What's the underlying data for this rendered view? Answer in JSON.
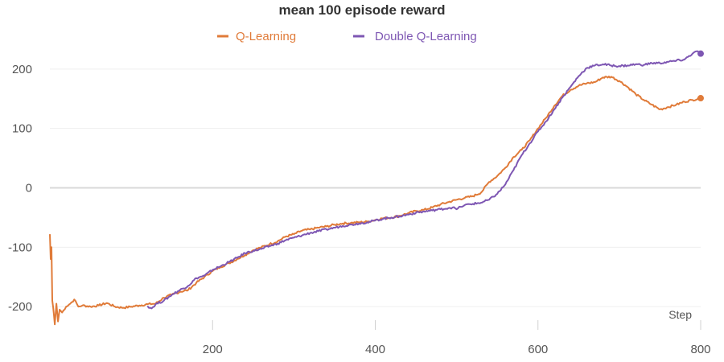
{
  "chart_data": {
    "type": "line",
    "title": "mean 100 episode reward",
    "xlabel": "Step",
    "ylabel": "",
    "xlim": [
      0,
      800
    ],
    "ylim": [
      -235,
      235
    ],
    "xticks": [
      200,
      400,
      600,
      800
    ],
    "yticks": [
      -200,
      -100,
      0,
      100,
      200
    ],
    "grid": true,
    "legend_position": "top",
    "series": [
      {
        "name": "Q-Learning",
        "color": "#e07b39",
        "points": [
          [
            0,
            -78
          ],
          [
            1,
            -120
          ],
          [
            2,
            -100
          ],
          [
            3,
            -190
          ],
          [
            4,
            -200
          ],
          [
            5,
            -215
          ],
          [
            6,
            -230
          ],
          [
            8,
            -195
          ],
          [
            10,
            -225
          ],
          [
            12,
            -205
          ],
          [
            15,
            -210
          ],
          [
            20,
            -200
          ],
          [
            25,
            -195
          ],
          [
            30,
            -188
          ],
          [
            35,
            -200
          ],
          [
            40,
            -198
          ],
          [
            50,
            -200
          ],
          [
            60,
            -198
          ],
          [
            70,
            -194
          ],
          [
            80,
            -200
          ],
          [
            90,
            -202
          ],
          [
            100,
            -200
          ],
          [
            110,
            -198
          ],
          [
            120,
            -196
          ],
          [
            130,
            -195
          ],
          [
            140,
            -185
          ],
          [
            150,
            -180
          ],
          [
            160,
            -175
          ],
          [
            170,
            -172
          ],
          [
            180,
            -160
          ],
          [
            190,
            -150
          ],
          [
            200,
            -140
          ],
          [
            210,
            -133
          ],
          [
            220,
            -127
          ],
          [
            230,
            -120
          ],
          [
            240,
            -113
          ],
          [
            250,
            -105
          ],
          [
            260,
            -100
          ],
          [
            270,
            -95
          ],
          [
            280,
            -90
          ],
          [
            290,
            -82
          ],
          [
            300,
            -78
          ],
          [
            310,
            -72
          ],
          [
            320,
            -70
          ],
          [
            330,
            -67
          ],
          [
            340,
            -65
          ],
          [
            350,
            -62
          ],
          [
            360,
            -60
          ],
          [
            370,
            -59
          ],
          [
            380,
            -58
          ],
          [
            390,
            -57
          ],
          [
            400,
            -54
          ],
          [
            410,
            -51
          ],
          [
            420,
            -50
          ],
          [
            430,
            -47
          ],
          [
            440,
            -43
          ],
          [
            450,
            -39
          ],
          [
            460,
            -37
          ],
          [
            470,
            -33
          ],
          [
            480,
            -28
          ],
          [
            490,
            -24
          ],
          [
            500,
            -20
          ],
          [
            510,
            -17
          ],
          [
            520,
            -14
          ],
          [
            530,
            -8
          ],
          [
            540,
            10
          ],
          [
            550,
            20
          ],
          [
            560,
            34
          ],
          [
            570,
            52
          ],
          [
            580,
            64
          ],
          [
            590,
            80
          ],
          [
            600,
            100
          ],
          [
            610,
            118
          ],
          [
            620,
            138
          ],
          [
            630,
            155
          ],
          [
            640,
            165
          ],
          [
            650,
            172
          ],
          [
            660,
            176
          ],
          [
            670,
            178
          ],
          [
            680,
            186
          ],
          [
            690,
            187
          ],
          [
            700,
            180
          ],
          [
            710,
            170
          ],
          [
            720,
            158
          ],
          [
            730,
            148
          ],
          [
            740,
            140
          ],
          [
            750,
            132
          ],
          [
            760,
            136
          ],
          [
            770,
            140
          ],
          [
            780,
            145
          ],
          [
            790,
            148
          ],
          [
            800,
            151
          ]
        ]
      },
      {
        "name": "Double Q-Learning",
        "color": "#7e57b3",
        "points": [
          [
            120,
            -199
          ],
          [
            125,
            -203
          ],
          [
            130,
            -196
          ],
          [
            140,
            -190
          ],
          [
            150,
            -180
          ],
          [
            160,
            -172
          ],
          [
            170,
            -165
          ],
          [
            180,
            -152
          ],
          [
            190,
            -148
          ],
          [
            200,
            -138
          ],
          [
            210,
            -132
          ],
          [
            220,
            -125
          ],
          [
            230,
            -118
          ],
          [
            240,
            -110
          ],
          [
            250,
            -106
          ],
          [
            260,
            -103
          ],
          [
            270,
            -98
          ],
          [
            280,
            -94
          ],
          [
            290,
            -88
          ],
          [
            300,
            -84
          ],
          [
            310,
            -80
          ],
          [
            320,
            -76
          ],
          [
            330,
            -73
          ],
          [
            340,
            -70
          ],
          [
            350,
            -67
          ],
          [
            360,
            -64
          ],
          [
            370,
            -62
          ],
          [
            380,
            -60
          ],
          [
            390,
            -58
          ],
          [
            400,
            -55
          ],
          [
            410,
            -52
          ],
          [
            420,
            -50
          ],
          [
            430,
            -48
          ],
          [
            440,
            -45
          ],
          [
            450,
            -42
          ],
          [
            460,
            -40
          ],
          [
            470,
            -38
          ],
          [
            480,
            -36
          ],
          [
            490,
            -34
          ],
          [
            495,
            -33
          ],
          [
            500,
            -36
          ],
          [
            505,
            -32
          ],
          [
            510,
            -29
          ],
          [
            520,
            -27
          ],
          [
            530,
            -25
          ],
          [
            540,
            -20
          ],
          [
            550,
            -10
          ],
          [
            560,
            6
          ],
          [
            570,
            30
          ],
          [
            580,
            55
          ],
          [
            590,
            75
          ],
          [
            600,
            95
          ],
          [
            610,
            112
          ],
          [
            620,
            132
          ],
          [
            630,
            152
          ],
          [
            640,
            170
          ],
          [
            650,
            188
          ],
          [
            660,
            202
          ],
          [
            670,
            206
          ],
          [
            680,
            208
          ],
          [
            690,
            206
          ],
          [
            700,
            205
          ],
          [
            710,
            206
          ],
          [
            720,
            208
          ],
          [
            730,
            207
          ],
          [
            740,
            210
          ],
          [
            750,
            210
          ],
          [
            760,
            212
          ],
          [
            770,
            214
          ],
          [
            780,
            216
          ],
          [
            790,
            226
          ],
          [
            795,
            230
          ],
          [
            800,
            226
          ]
        ]
      }
    ]
  }
}
